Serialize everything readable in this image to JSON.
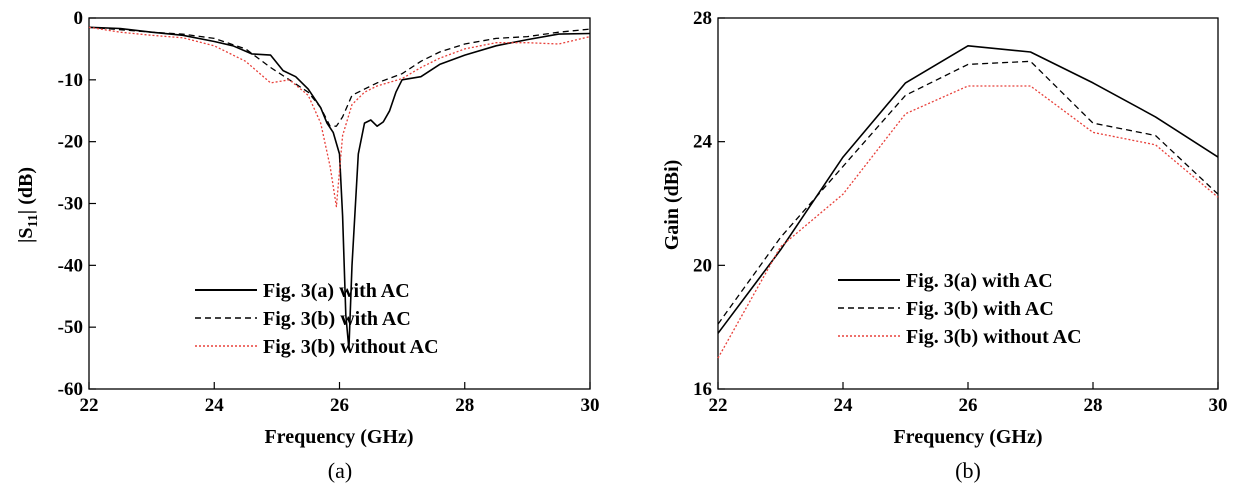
{
  "chart_data": [
    {
      "type": "line",
      "caption": "(a)",
      "xlabel": "Frequency (GHz)",
      "ylabel_main": "|S",
      "ylabel_sub": "11",
      "ylabel_end": "| (dB)",
      "xlim": [
        22,
        30
      ],
      "ylim": [
        -60,
        0
      ],
      "xticks": [
        22,
        24,
        26,
        28,
        30
      ],
      "yticks": [
        0,
        -10,
        -20,
        -30,
        -40,
        -50,
        -60
      ],
      "legend_position": "bottom-center",
      "series": [
        {
          "name": "Fig. 3(a) with AC",
          "color": "#000000",
          "style": "solid",
          "x": [
            22,
            22.5,
            23,
            23.5,
            24,
            24.3,
            24.6,
            24.9,
            25.1,
            25.3,
            25.5,
            25.7,
            25.8,
            25.9,
            26.0,
            26.05,
            26.1,
            26.15,
            26.2,
            26.3,
            26.4,
            26.5,
            26.6,
            26.7,
            26.8,
            26.9,
            27.0,
            27.3,
            27.6,
            28,
            28.5,
            29,
            29.5,
            30
          ],
          "y": [
            -1.5,
            -1.7,
            -2.3,
            -2.8,
            -3.8,
            -4.5,
            -5.8,
            -6.0,
            -8.5,
            -9.5,
            -11.5,
            -14.5,
            -17.0,
            -18.5,
            -22.0,
            -32.0,
            -48.0,
            -53.5,
            -40.0,
            -22.0,
            -17.0,
            -16.5,
            -17.5,
            -16.8,
            -15.0,
            -12.0,
            -10.0,
            -9.5,
            -7.5,
            -6.0,
            -4.5,
            -3.5,
            -2.6,
            -2.5
          ]
        },
        {
          "name": "Fig. 3(b) with AC",
          "color": "#000000",
          "style": "dashed",
          "x": [
            22,
            22.5,
            23,
            23.5,
            24,
            24.5,
            24.9,
            25.2,
            25.5,
            25.7,
            25.85,
            25.95,
            26.05,
            26.2,
            26.4,
            26.6,
            27,
            27.3,
            27.6,
            28,
            28.5,
            29,
            29.5,
            30
          ],
          "y": [
            -1.5,
            -1.9,
            -2.3,
            -2.6,
            -3.3,
            -5.0,
            -8.0,
            -10.0,
            -12.0,
            -14.5,
            -17.5,
            -17.5,
            -16.0,
            -12.5,
            -11.5,
            -10.5,
            -9.0,
            -7.0,
            -5.5,
            -4.2,
            -3.3,
            -3.0,
            -2.3,
            -1.8
          ]
        },
        {
          "name": "Fig. 3(b) without AC",
          "color": "#e8403a",
          "style": "dotted",
          "x": [
            22,
            22.5,
            23,
            23.5,
            24,
            24.5,
            24.9,
            25.2,
            25.5,
            25.7,
            25.85,
            25.95,
            26.05,
            26.2,
            26.4,
            26.6,
            27,
            27.3,
            27.6,
            28,
            28.5,
            29,
            29.5,
            30
          ],
          "y": [
            -1.5,
            -2.3,
            -2.8,
            -3.2,
            -4.5,
            -7.0,
            -10.5,
            -10.0,
            -12.5,
            -17.0,
            -24.0,
            -30.5,
            -19.0,
            -14.0,
            -12.0,
            -11.0,
            -9.8,
            -8.0,
            -6.5,
            -5.0,
            -4.0,
            -4.0,
            -4.2,
            -3.0
          ]
        }
      ],
      "legend": [
        "Fig. 3(a) with AC",
        "Fig. 3(b) with AC",
        "Fig. 3(b) without AC"
      ]
    },
    {
      "type": "line",
      "caption": "(b)",
      "xlabel": "Frequency (GHz)",
      "ylabel_main": "Gain (dBi)",
      "xlim": [
        22,
        30
      ],
      "ylim": [
        16,
        28
      ],
      "xticks": [
        22,
        24,
        26,
        28,
        30
      ],
      "yticks": [
        28,
        24,
        20,
        16
      ],
      "legend_position": "bottom-center",
      "series": [
        {
          "name": "Fig. 3(a) with AC",
          "color": "#000000",
          "style": "solid",
          "x": [
            22,
            23,
            24,
            25,
            26,
            27,
            28,
            29,
            30
          ],
          "y": [
            17.8,
            20.5,
            23.5,
            25.9,
            27.1,
            26.9,
            25.9,
            24.8,
            23.5
          ]
        },
        {
          "name": "Fig. 3(b) with AC",
          "color": "#000000",
          "style": "dashed",
          "x": [
            22,
            23,
            24,
            25,
            26,
            27,
            28,
            29,
            30
          ],
          "y": [
            18.1,
            20.9,
            23.2,
            25.5,
            26.5,
            26.6,
            24.6,
            24.2,
            22.3
          ]
        },
        {
          "name": "Fig. 3(b) without AC",
          "color": "#e8403a",
          "style": "dotted",
          "x": [
            22,
            23,
            24,
            25,
            26,
            27,
            28,
            29,
            30
          ],
          "y": [
            17.0,
            20.6,
            22.3,
            24.9,
            25.8,
            25.8,
            24.3,
            23.9,
            22.2
          ]
        }
      ],
      "legend": [
        "Fig. 3(a) with AC",
        "Fig. 3(b) with AC",
        "Fig. 3(b) without AC"
      ]
    }
  ]
}
